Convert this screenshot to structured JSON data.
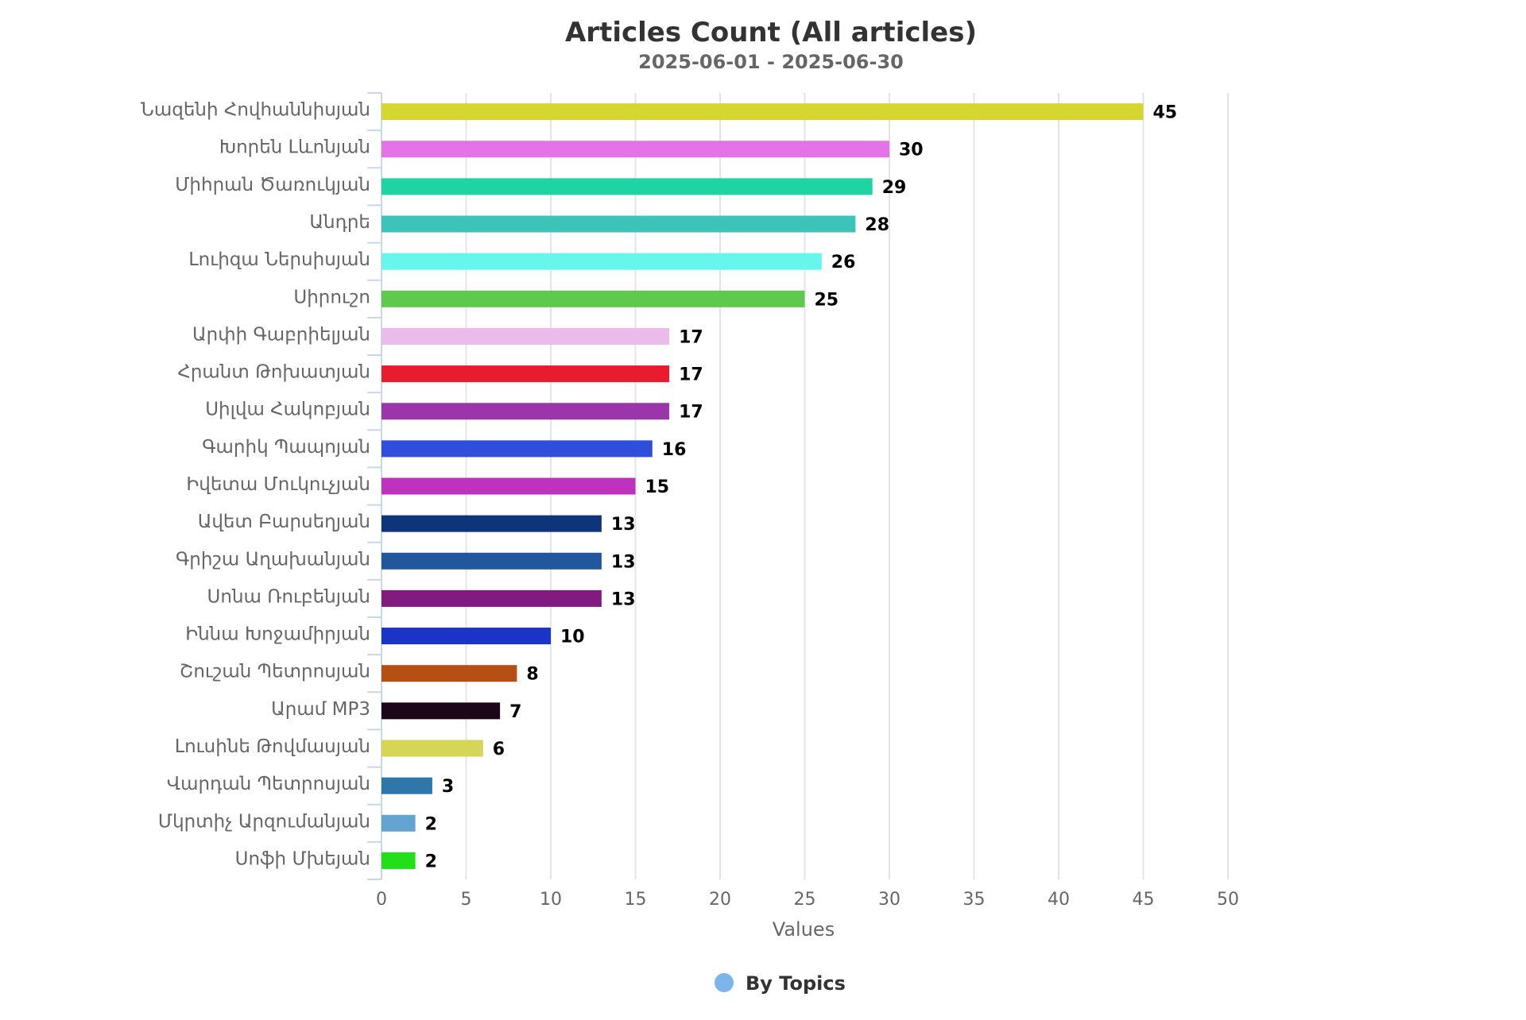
{
  "chart_data": {
    "type": "bar",
    "orientation": "horizontal",
    "title": "Articles Count (All articles)",
    "subtitle": "2025-06-01 - 2025-06-30",
    "xlabel": "Values",
    "xlim": [
      0,
      50
    ],
    "xticks": [
      0,
      5,
      10,
      15,
      20,
      25,
      30,
      35,
      40,
      45,
      50
    ],
    "grid": true,
    "legend": {
      "position": "bottom-center",
      "entries": [
        {
          "name": "By Topics",
          "color": "#7cb5ec"
        }
      ]
    },
    "series": [
      {
        "name": "By Topics",
        "points": [
          {
            "category": "Նազենի Հովհաննիսյան",
            "value": 45,
            "color": "#d6d630"
          },
          {
            "category": "Խորեն Լևոնյան",
            "value": 30,
            "color": "#e473e8"
          },
          {
            "category": "Միհրան Ծառուկյան",
            "value": 29,
            "color": "#1fd4a3"
          },
          {
            "category": "Անդրե",
            "value": 28,
            "color": "#3cc4b9"
          },
          {
            "category": "Լուիզա Ներսիսյան",
            "value": 26,
            "color": "#66f6ec"
          },
          {
            "category": "Սիրուշո",
            "value": 25,
            "color": "#5ec94c"
          },
          {
            "category": "Արփի Գաբրիելյան",
            "value": 17,
            "color": "#ebbbeb"
          },
          {
            "category": "Հրանտ Թոխատյան",
            "value": 17,
            "color": "#e81b2f"
          },
          {
            "category": "Սիլվա Հակոբյան",
            "value": 17,
            "color": "#9a36aa"
          },
          {
            "category": "Գարիկ Պապոյան",
            "value": 16,
            "color": "#2f4edb"
          },
          {
            "category": "Իվետա Մուկուչյան",
            "value": 15,
            "color": "#bd33be"
          },
          {
            "category": "Ավետ Բարսեղյան",
            "value": 13,
            "color": "#0e3479"
          },
          {
            "category": "Գրիշա Աղախանյան",
            "value": 13,
            "color": "#22579d"
          },
          {
            "category": "Սոնա Ռուբենյան",
            "value": 13,
            "color": "#821b7f"
          },
          {
            "category": "Իննա Խոջամիրյան",
            "value": 10,
            "color": "#1c33c7"
          },
          {
            "category": "Շուշան Պետրոսյան",
            "value": 8,
            "color": "#b54f14"
          },
          {
            "category": "Արամ MP3",
            "value": 7,
            "color": "#1c0719"
          },
          {
            "category": "Լուսինե Թովմասյան",
            "value": 6,
            "color": "#d5d556"
          },
          {
            "category": "Վարդան Պետրոսյան",
            "value": 3,
            "color": "#2f77aa"
          },
          {
            "category": "Մկրտիչ Արզումանյան",
            "value": 2,
            "color": "#63a4d1"
          },
          {
            "category": "Սոֆի Մխեյան",
            "value": 2,
            "color": "#21e01a"
          }
        ]
      }
    ]
  }
}
